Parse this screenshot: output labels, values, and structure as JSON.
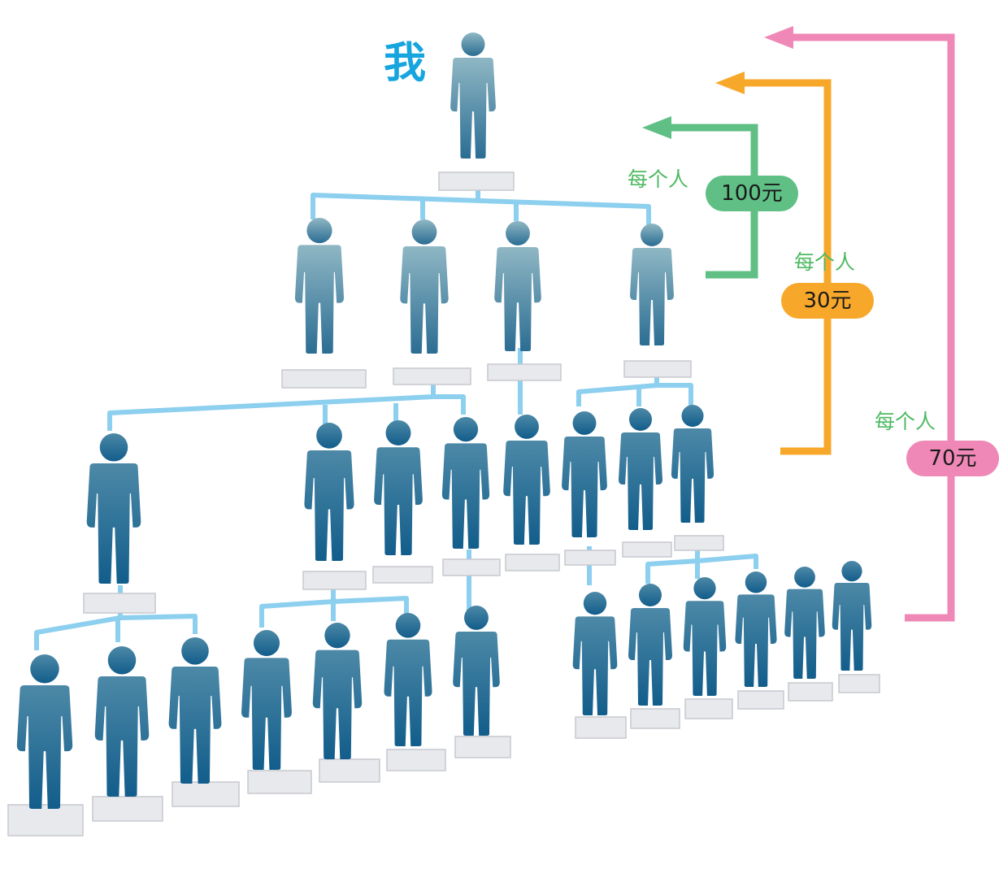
{
  "me_label": "我",
  "tiers": [
    {
      "per_label": "每个人",
      "amount": "100元",
      "color": "#5fbf85"
    },
    {
      "per_label": "每个人",
      "amount": "30元",
      "color": "#f7a82b"
    },
    {
      "per_label": "每个人",
      "amount": "70元",
      "color": "#ef88b6"
    }
  ],
  "colors": {
    "person_top": "#7aa7b7",
    "person_bottom": "#155f8d",
    "connector": "#8ccfee",
    "name_plate": "#e8e9ec",
    "me_label": "#16a5de",
    "per_label": "#4fba62"
  },
  "icons": [
    "person-icon",
    "name-plate",
    "left-arrow-icon"
  ]
}
